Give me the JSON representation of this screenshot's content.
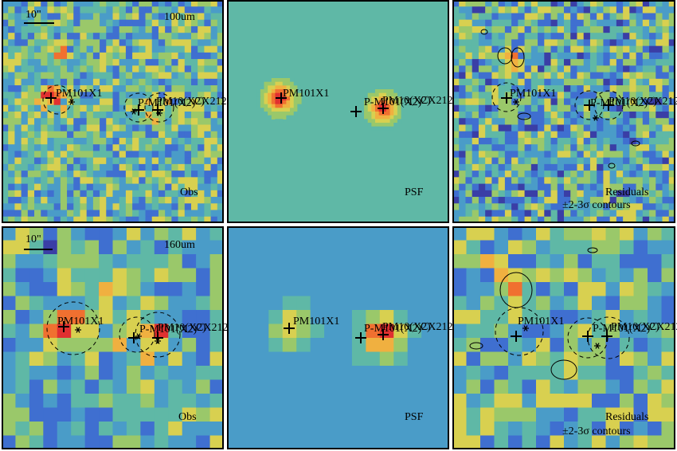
{
  "figure": {
    "rows": [
      {
        "band": "100um",
        "scalebar": "10\"",
        "panels": [
          {
            "id": "obs",
            "label": "Obs"
          },
          {
            "id": "psf",
            "label": "PSF"
          },
          {
            "id": "res",
            "label_line1": "Residuals",
            "label_line2": "±2-3σ contours"
          }
        ],
        "sources": [
          {
            "name": "PM101X1"
          },
          {
            "name": "P-M101(X2)"
          },
          {
            "name": "PM10(X2)"
          },
          {
            "name": "CX212"
          }
        ]
      },
      {
        "band": "160um",
        "scalebar": "10\"",
        "panels": [
          {
            "id": "obs",
            "label": "Obs"
          },
          {
            "id": "psf",
            "label": "PSF"
          },
          {
            "id": "res",
            "label_line1": "Residuals",
            "label_line2": "±2-3σ contours"
          }
        ],
        "sources": [
          {
            "name": "PM101X1"
          },
          {
            "name": "P-M101(X2)"
          },
          {
            "name": "PM10(X2)"
          },
          {
            "name": "CX212"
          }
        ]
      }
    ],
    "colormap": [
      "#2b1a7a",
      "#3a3ea6",
      "#3f6fd0",
      "#4a9cc8",
      "#5fb8a6",
      "#9ac86a",
      "#d8d050",
      "#f0b040",
      "#f07030",
      "#e03030"
    ]
  }
}
